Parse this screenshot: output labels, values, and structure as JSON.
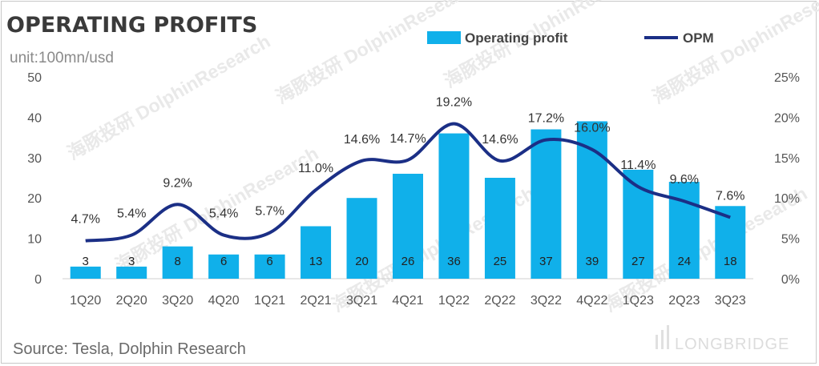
{
  "title": "OPERATING PROFITS",
  "unit": "unit:100mn/usd",
  "source": "Source: Tesla, Dolphin Research",
  "watermark_logo": "海豚投研 DolphinResearch",
  "brand_logo": "LONGBRIDGE",
  "colors": {
    "bar": "#10b0ea",
    "line": "#1b2f86"
  },
  "chart_data": {
    "type": "bar+line",
    "title": "OPERATING PROFITS",
    "categories": [
      "1Q20",
      "2Q20",
      "3Q20",
      "4Q20",
      "1Q21",
      "2Q21",
      "3Q21",
      "4Q21",
      "1Q22",
      "2Q22",
      "3Q22",
      "4Q22",
      "1Q23",
      "2Q23",
      "3Q23"
    ],
    "series": [
      {
        "name": "Operating profit",
        "type": "bar",
        "axis": "left",
        "values": [
          3,
          3,
          8,
          6,
          6,
          13,
          20,
          26,
          36,
          25,
          37,
          39,
          27,
          24,
          18
        ],
        "labels": [
          "3",
          "3",
          "8",
          "6",
          "6",
          "13",
          "20",
          "26",
          "36",
          "25",
          "37",
          "39",
          "27",
          "24",
          "18"
        ]
      },
      {
        "name": "OPM",
        "type": "line",
        "axis": "right",
        "values": [
          4.7,
          5.4,
          9.2,
          5.4,
          5.7,
          11.0,
          14.6,
          14.7,
          19.2,
          14.6,
          17.2,
          16.0,
          11.4,
          9.6,
          7.6
        ],
        "labels": [
          "4.7%",
          "5.4%",
          "9.2%",
          "5.4%",
          "5.7%",
          "11.0%",
          "14.6%",
          "14.7%",
          "19.2%",
          "14.6%",
          "17.2%",
          "16.0%",
          "11.4%",
          "9.6%",
          "7.6%"
        ]
      }
    ],
    "y_left": {
      "range": [
        0,
        50
      ],
      "ticks": [
        "0",
        "10",
        "20",
        "30",
        "40",
        "50"
      ]
    },
    "y_right": {
      "range": [
        0,
        25
      ],
      "ticks": [
        "0%",
        "5%",
        "10%",
        "15%",
        "20%",
        "25%"
      ]
    },
    "legend": {
      "placement": "top",
      "items": [
        "Operating profit",
        "OPM"
      ]
    },
    "grid": false
  }
}
